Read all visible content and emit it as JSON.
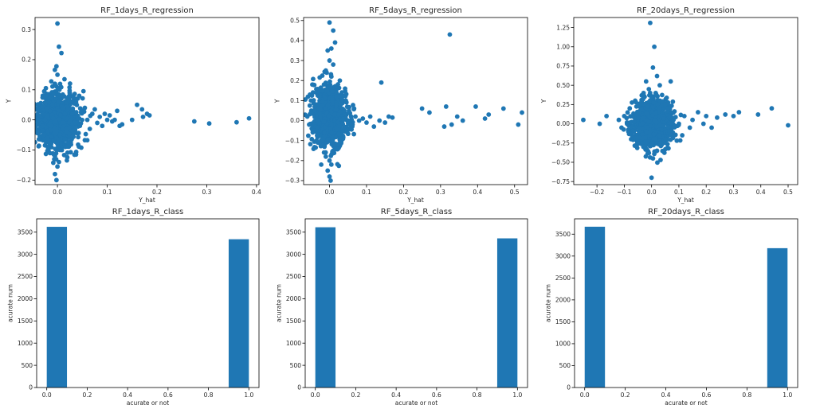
{
  "chart_data": [
    {
      "type": "scatter",
      "title": "RF_1days_R_regression",
      "xlabel": "Y_hat",
      "ylabel": "Y",
      "xlim": [
        -0.045,
        0.405
      ],
      "ylim": [
        -0.215,
        0.34
      ],
      "xticks": [
        0.0,
        0.1,
        0.2,
        0.3,
        0.4
      ],
      "xtick_labels": [
        "0.0",
        "0.1",
        "0.2",
        "0.3",
        "0.4"
      ],
      "yticks": [
        -0.2,
        -0.1,
        0.0,
        0.1,
        0.2,
        0.3
      ],
      "ytick_labels": [
        "−0.2",
        "−0.1",
        "0.0",
        "0.1",
        "0.2",
        "0.3"
      ],
      "color": "#1f77b4",
      "grid": false,
      "points": [
        [
          0.0,
          0.32
        ],
        [
          0.003,
          0.243
        ],
        [
          0.008,
          0.222
        ],
        [
          -0.002,
          0.178
        ],
        [
          0.0,
          0.15
        ],
        [
          -0.005,
          0.12
        ],
        [
          0.004,
          0.1
        ],
        [
          -0.008,
          0.085
        ],
        [
          0.006,
          0.08
        ],
        [
          -0.003,
          0.07
        ],
        [
          0.002,
          0.06
        ],
        [
          -0.01,
          0.05
        ],
        [
          0.012,
          0.04
        ],
        [
          -0.015,
          0.03
        ],
        [
          0.015,
          0.02
        ],
        [
          -0.02,
          0.01
        ],
        [
          0.02,
          0.005
        ],
        [
          -0.025,
          0.0
        ],
        [
          0.025,
          -0.005
        ],
        [
          -0.012,
          -0.02
        ],
        [
          0.01,
          -0.03
        ],
        [
          -0.005,
          -0.04
        ],
        [
          0.005,
          -0.05
        ],
        [
          -0.02,
          -0.06
        ],
        [
          0.0,
          -0.08
        ],
        [
          0.005,
          -0.1
        ],
        [
          -0.005,
          -0.12
        ],
        [
          0.003,
          -0.14
        ],
        [
          0.0,
          -0.155
        ],
        [
          -0.005,
          -0.18
        ],
        [
          -0.002,
          -0.2
        ],
        [
          -0.035,
          0.01
        ],
        [
          -0.033,
          -0.01
        ],
        [
          -0.038,
          0.0
        ],
        [
          -0.03,
          -0.02
        ],
        [
          -0.03,
          -0.035
        ],
        [
          -0.035,
          -0.06
        ],
        [
          -0.028,
          0.03
        ],
        [
          -0.03,
          0.02
        ],
        [
          0.03,
          0.02
        ],
        [
          0.035,
          -0.01
        ],
        [
          0.04,
          0.01
        ],
        [
          0.045,
          -0.02
        ],
        [
          0.05,
          0.03
        ],
        [
          0.055,
          0.04
        ],
        [
          0.06,
          0.0
        ],
        [
          0.065,
          -0.03
        ],
        [
          0.07,
          0.02
        ],
        [
          0.075,
          0.035
        ],
        [
          0.08,
          -0.01
        ],
        [
          0.085,
          0.01
        ],
        [
          0.09,
          -0.02
        ],
        [
          0.095,
          0.02
        ],
        [
          0.1,
          0.0
        ],
        [
          0.105,
          0.015
        ],
        [
          0.11,
          -0.005
        ],
        [
          0.115,
          0.0
        ],
        [
          0.12,
          0.03
        ],
        [
          0.125,
          -0.02
        ],
        [
          0.13,
          -0.015
        ],
        [
          0.15,
          0.0
        ],
        [
          0.16,
          0.05
        ],
        [
          0.17,
          0.035
        ],
        [
          0.172,
          0.01
        ],
        [
          0.18,
          0.02
        ],
        [
          0.185,
          0.015
        ],
        [
          0.275,
          -0.005
        ],
        [
          0.305,
          -0.012
        ],
        [
          0.36,
          -0.008
        ],
        [
          0.385,
          0.005
        ]
      ],
      "dense_cluster": {
        "x_center": 0.0,
        "y_center": 0.0,
        "x_spread": 0.02,
        "y_spread": 0.045,
        "count": 900
      }
    },
    {
      "type": "scatter",
      "title": "RF_5days_R_regression",
      "xlabel": "Y_hat",
      "ylabel": "Y",
      "xlim": [
        -0.07,
        0.535
      ],
      "ylim": [
        -0.32,
        0.515
      ],
      "xticks": [
        0.0,
        0.1,
        0.2,
        0.3,
        0.4,
        0.5
      ],
      "xtick_labels": [
        "0.0",
        "0.1",
        "0.2",
        "0.3",
        "0.4",
        "0.5"
      ],
      "yticks": [
        -0.3,
        -0.2,
        -0.1,
        0.0,
        0.1,
        0.2,
        0.3,
        0.4,
        0.5
      ],
      "ytick_labels": [
        "−0.3",
        "−0.2",
        "−0.1",
        "0.0",
        "0.1",
        "0.2",
        "0.3",
        "0.4",
        "0.5"
      ],
      "color": "#1f77b4",
      "grid": false,
      "points": [
        [
          0.0,
          0.49
        ],
        [
          0.01,
          0.45
        ],
        [
          0.015,
          0.39
        ],
        [
          0.005,
          0.36
        ],
        [
          -0.005,
          0.35
        ],
        [
          0.0,
          0.3
        ],
        [
          0.01,
          0.28
        ],
        [
          -0.01,
          0.25
        ],
        [
          0.005,
          0.22
        ],
        [
          -0.015,
          0.18
        ],
        [
          0.015,
          0.17
        ],
        [
          -0.02,
          0.15
        ],
        [
          0.02,
          0.12
        ],
        [
          0.0,
          -0.2
        ],
        [
          0.005,
          -0.22
        ],
        [
          -0.005,
          -0.25
        ],
        [
          0.0,
          -0.28
        ],
        [
          0.003,
          -0.3
        ],
        [
          -0.01,
          -0.18
        ],
        [
          0.01,
          -0.15
        ],
        [
          -0.02,
          -0.1
        ],
        [
          0.02,
          -0.12
        ],
        [
          -0.06,
          0.02
        ],
        [
          -0.055,
          -0.02
        ],
        [
          -0.05,
          0.1
        ],
        [
          -0.045,
          -0.05
        ],
        [
          -0.04,
          0.05
        ],
        [
          -0.035,
          -0.1
        ],
        [
          -0.03,
          0.0
        ],
        [
          -0.028,
          0.12
        ],
        [
          0.04,
          0.05
        ],
        [
          0.05,
          0.0
        ],
        [
          0.06,
          -0.02
        ],
        [
          0.07,
          0.02
        ],
        [
          0.08,
          0.0
        ],
        [
          0.09,
          0.01
        ],
        [
          0.1,
          -0.01
        ],
        [
          0.11,
          0.02
        ],
        [
          0.12,
          -0.03
        ],
        [
          0.135,
          0.0
        ],
        [
          0.14,
          0.19
        ],
        [
          0.15,
          -0.01
        ],
        [
          0.16,
          0.02
        ],
        [
          0.17,
          0.015
        ],
        [
          0.25,
          0.06
        ],
        [
          0.27,
          0.04
        ],
        [
          0.31,
          -0.03
        ],
        [
          0.315,
          0.07
        ],
        [
          0.325,
          0.43
        ],
        [
          0.33,
          -0.02
        ],
        [
          0.345,
          0.02
        ],
        [
          0.36,
          0.0
        ],
        [
          0.395,
          0.07
        ],
        [
          0.42,
          0.01
        ],
        [
          0.43,
          0.03
        ],
        [
          0.47,
          0.06
        ],
        [
          0.51,
          -0.02
        ],
        [
          0.52,
          0.04
        ]
      ],
      "dense_cluster": {
        "x_center": 0.0,
        "y_center": 0.02,
        "x_spread": 0.022,
        "y_spread": 0.07,
        "count": 1000
      }
    },
    {
      "type": "scatter",
      "title": "RF_20days_R_regression",
      "xlabel": "Y_hat",
      "ylabel": "Y",
      "xlim": [
        -0.285,
        0.535
      ],
      "ylim": [
        -0.79,
        1.38
      ],
      "xticks": [
        -0.2,
        -0.1,
        0.0,
        0.1,
        0.2,
        0.3,
        0.4,
        0.5
      ],
      "xtick_labels": [
        "−0.2",
        "−0.1",
        "0.0",
        "0.1",
        "0.2",
        "0.3",
        "0.4",
        "0.5"
      ],
      "yticks": [
        -0.75,
        -0.5,
        -0.25,
        0.0,
        0.25,
        0.5,
        0.75,
        1.0,
        1.25
      ],
      "ytick_labels": [
        "−0.75",
        "−0.50",
        "−0.25",
        "0.00",
        "0.25",
        "0.50",
        "0.75",
        "1.00",
        "1.25"
      ],
      "color": "#1f77b4",
      "grid": false,
      "points": [
        [
          -0.005,
          1.31
        ],
        [
          0.01,
          1.0
        ],
        [
          0.005,
          0.73
        ],
        [
          0.02,
          0.62
        ],
        [
          -0.02,
          0.55
        ],
        [
          0.07,
          0.55
        ],
        [
          0.03,
          0.5
        ],
        [
          -0.01,
          0.45
        ],
        [
          0.015,
          0.4
        ],
        [
          0.0,
          -0.7
        ],
        [
          0.005,
          -0.45
        ],
        [
          -0.01,
          -0.38
        ],
        [
          0.02,
          -0.35
        ],
        [
          -0.03,
          -0.3
        ],
        [
          0.03,
          -0.25
        ],
        [
          -0.25,
          0.05
        ],
        [
          -0.19,
          0.0
        ],
        [
          -0.165,
          0.1
        ],
        [
          -0.12,
          0.05
        ],
        [
          -0.11,
          -0.05
        ],
        [
          -0.1,
          0.1
        ],
        [
          -0.09,
          0.0
        ],
        [
          -0.085,
          -0.1
        ],
        [
          -0.08,
          0.2
        ],
        [
          -0.075,
          -0.2
        ],
        [
          -0.06,
          0.3
        ],
        [
          -0.05,
          -0.25
        ],
        [
          -0.045,
          0.15
        ],
        [
          0.05,
          -0.2
        ],
        [
          0.06,
          0.2
        ],
        [
          0.08,
          0.05
        ],
        [
          0.1,
          0.0
        ],
        [
          0.12,
          0.1
        ],
        [
          0.14,
          -0.05
        ],
        [
          0.15,
          0.05
        ],
        [
          0.17,
          0.15
        ],
        [
          0.19,
          0.0
        ],
        [
          0.2,
          0.1
        ],
        [
          0.22,
          -0.05
        ],
        [
          0.24,
          0.08
        ],
        [
          0.27,
          0.12
        ],
        [
          0.3,
          0.1
        ],
        [
          0.32,
          0.15
        ],
        [
          0.39,
          0.12
        ],
        [
          0.44,
          0.2
        ],
        [
          0.5,
          -0.02
        ]
      ],
      "dense_cluster": {
        "x_center": 0.005,
        "y_center": 0.0,
        "x_spread": 0.035,
        "y_spread": 0.15,
        "count": 1000
      }
    },
    {
      "type": "bar",
      "title": "RF_1days_R_class",
      "xlabel": "acurate or not",
      "ylabel": "acurate num",
      "xlim": [
        -0.05,
        1.05
      ],
      "ylim": [
        0,
        3800
      ],
      "xticks": [
        0.0,
        0.2,
        0.4,
        0.6,
        0.8,
        1.0
      ],
      "xtick_labels": [
        "0.0",
        "0.2",
        "0.4",
        "0.6",
        "0.8",
        "1.0"
      ],
      "yticks": [
        0,
        500,
        1000,
        1500,
        2000,
        2500,
        3000,
        3500
      ],
      "ytick_labels": [
        "0",
        "500",
        "1000",
        "1500",
        "2000",
        "2500",
        "3000",
        "3500"
      ],
      "color": "#1f77b4",
      "grid": false,
      "bars": [
        {
          "x0": 0.0,
          "x1": 0.1,
          "value": 3620
        },
        {
          "x0": 0.9,
          "x1": 1.0,
          "value": 3340
        }
      ]
    },
    {
      "type": "bar",
      "title": "RF_5days_R_class",
      "xlabel": "acurate or not",
      "ylabel": "acurate num",
      "xlim": [
        -0.05,
        1.05
      ],
      "ylim": [
        0,
        3800
      ],
      "xticks": [
        0.0,
        0.2,
        0.4,
        0.6,
        0.8,
        1.0
      ],
      "xtick_labels": [
        "0.0",
        "0.2",
        "0.4",
        "0.6",
        "0.8",
        "1.0"
      ],
      "yticks": [
        0,
        500,
        1000,
        1500,
        2000,
        2500,
        3000,
        3500
      ],
      "ytick_labels": [
        "0",
        "500",
        "1000",
        "1500",
        "2000",
        "2500",
        "3000",
        "3500"
      ],
      "color": "#1f77b4",
      "grid": false,
      "bars": [
        {
          "x0": 0.0,
          "x1": 0.1,
          "value": 3610
        },
        {
          "x0": 0.9,
          "x1": 1.0,
          "value": 3360
        }
      ]
    },
    {
      "type": "bar",
      "title": "RF_20days_R_class",
      "xlabel": "acurate or not",
      "ylabel": "acurate num",
      "xlim": [
        -0.05,
        1.05
      ],
      "ylim": [
        0,
        3850
      ],
      "xticks": [
        0.0,
        0.2,
        0.4,
        0.6,
        0.8,
        1.0
      ],
      "xtick_labels": [
        "0.0",
        "0.2",
        "0.4",
        "0.6",
        "0.8",
        "1.0"
      ],
      "yticks": [
        0,
        500,
        1000,
        1500,
        2000,
        2500,
        3000,
        3500
      ],
      "ytick_labels": [
        "0",
        "500",
        "1000",
        "1500",
        "2000",
        "2500",
        "3000",
        "3500"
      ],
      "color": "#1f77b4",
      "grid": false,
      "bars": [
        {
          "x0": 0.0,
          "x1": 0.1,
          "value": 3670
        },
        {
          "x0": 0.9,
          "x1": 1.0,
          "value": 3180
        }
      ]
    }
  ]
}
